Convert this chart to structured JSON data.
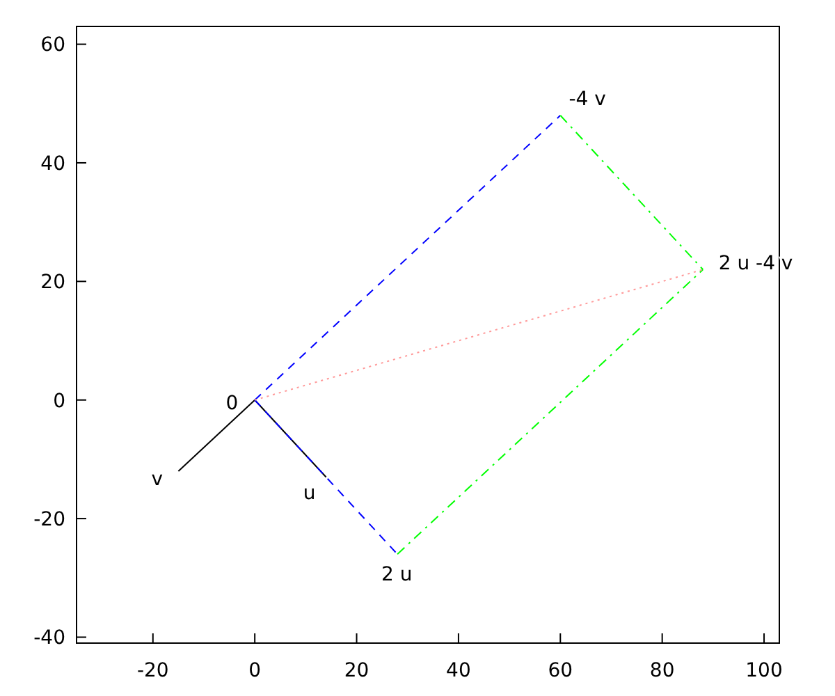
{
  "chart_data": {
    "type": "line",
    "xlim": [
      -35,
      103
    ],
    "ylim": [
      -41,
      63
    ],
    "xticks": [
      -20,
      0,
      20,
      40,
      60,
      80,
      100
    ],
    "yticks": [
      -40,
      -20,
      0,
      20,
      40,
      60
    ],
    "grid": false,
    "series": [
      {
        "color": "#000000",
        "line_style": "solid",
        "x": [
          0,
          -15
        ],
        "values": [
          0,
          -12
        ]
      },
      {
        "color": "#000000",
        "line_style": "solid",
        "x": [
          0,
          14
        ],
        "values": [
          0,
          -13
        ]
      },
      {
        "color": "#0000ff",
        "line_style": "dashed",
        "x": [
          0,
          28
        ],
        "values": [
          0,
          -26
        ]
      },
      {
        "color": "#0000ff",
        "line_style": "dashed",
        "x": [
          0,
          60
        ],
        "values": [
          0,
          48
        ]
      },
      {
        "color": "#00ff00",
        "line_style": "dashdot",
        "x": [
          28,
          88
        ],
        "values": [
          -26,
          22
        ]
      },
      {
        "color": "#00ff00",
        "line_style": "dashdot",
        "x": [
          60,
          88
        ],
        "values": [
          48,
          22
        ]
      },
      {
        "color": "#ff9999",
        "line_style": "dotted",
        "x": [
          0,
          88
        ],
        "values": [
          0,
          22
        ]
      }
    ],
    "annotations": [
      {
        "text": "0",
        "x": 0,
        "y": 0
      },
      {
        "text": "v",
        "x": -15,
        "y": -12
      },
      {
        "text": "u",
        "x": 14,
        "y": -13
      },
      {
        "text": "2 u",
        "x": 28,
        "y": -26
      },
      {
        "text": "-4 v",
        "x": 60,
        "y": 48
      },
      {
        "text": "2 u -4 v",
        "x": 88,
        "y": 22
      }
    ]
  }
}
